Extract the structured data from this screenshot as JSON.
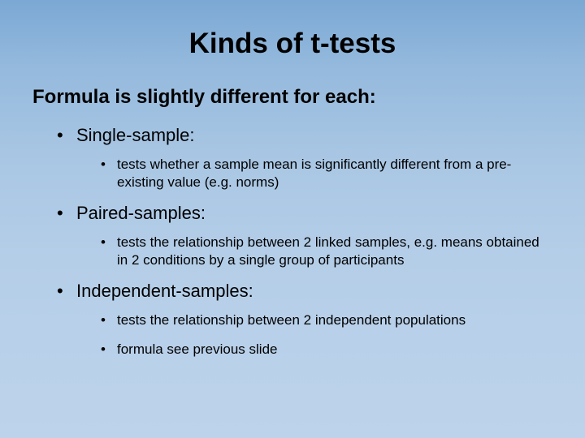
{
  "title": "Kinds of t-tests",
  "subtitle": "Formula is slightly different for each:",
  "items": [
    {
      "label": "Single-sample:",
      "subitems": [
        "tests whether a sample mean is significantly different from a pre-existing value (e.g. norms)"
      ]
    },
    {
      "label": "Paired-samples:",
      "subitems": [
        "tests the relationship between 2 linked samples, e.g. means obtained in 2 conditions by a single group of participants"
      ]
    },
    {
      "label": "Independent-samples:",
      "subitems": [
        "tests the relationship between 2 independent populations",
        "formula see previous slide"
      ]
    }
  ],
  "styling": {
    "background_gradient_top": "#7ba8d4",
    "background_gradient_bottom": "#bdd3eb",
    "text_color": "#000000",
    "title_fontsize": 35,
    "subtitle_fontsize": 24,
    "level1_fontsize": 22,
    "level2_fontsize": 17,
    "font_family": "Arial"
  }
}
